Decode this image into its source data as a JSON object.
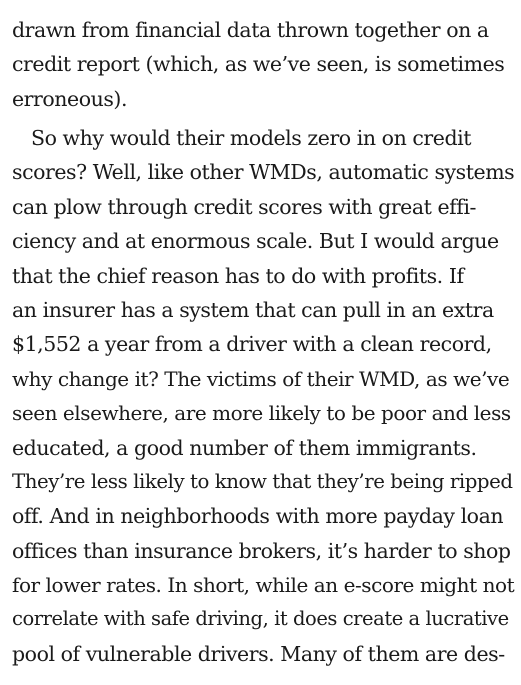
{
  "paragraphs": [
    {
      "lines": [
        "drawn from financial data thrown together on a",
        "credit report (which, as we’ve seen, is sometimes",
        "erroneous)."
      ]
    },
    {
      "lines": [
        "So why would their models zero in on credit",
        "scores? Well, like other WMDs, automatic systems",
        "can plow through credit scores with great effi-",
        "ciency and at enormous scale. But I would argue",
        "that the chief reason has to do with profits. If",
        "an insurer has a system that can pull in an extra",
        "$1,552 a year from a driver with a clean record,",
        "why change it? The victims of their WMD, as we’ve",
        "seen elsewhere, are more likely to be poor and less",
        "educated, a good number of them immigrants.",
        "They’re less likely to know that they’re being ripped",
        "off. And in neighborhoods with more payday loan",
        "offices than insurance brokers, it’s harder to shop",
        "for lower rates. In short, while an e-score might not",
        "correlate with safe driving, it does create a lucrative",
        "pool of vulnerable drivers. Many of them are des-"
      ]
    }
  ]
}
